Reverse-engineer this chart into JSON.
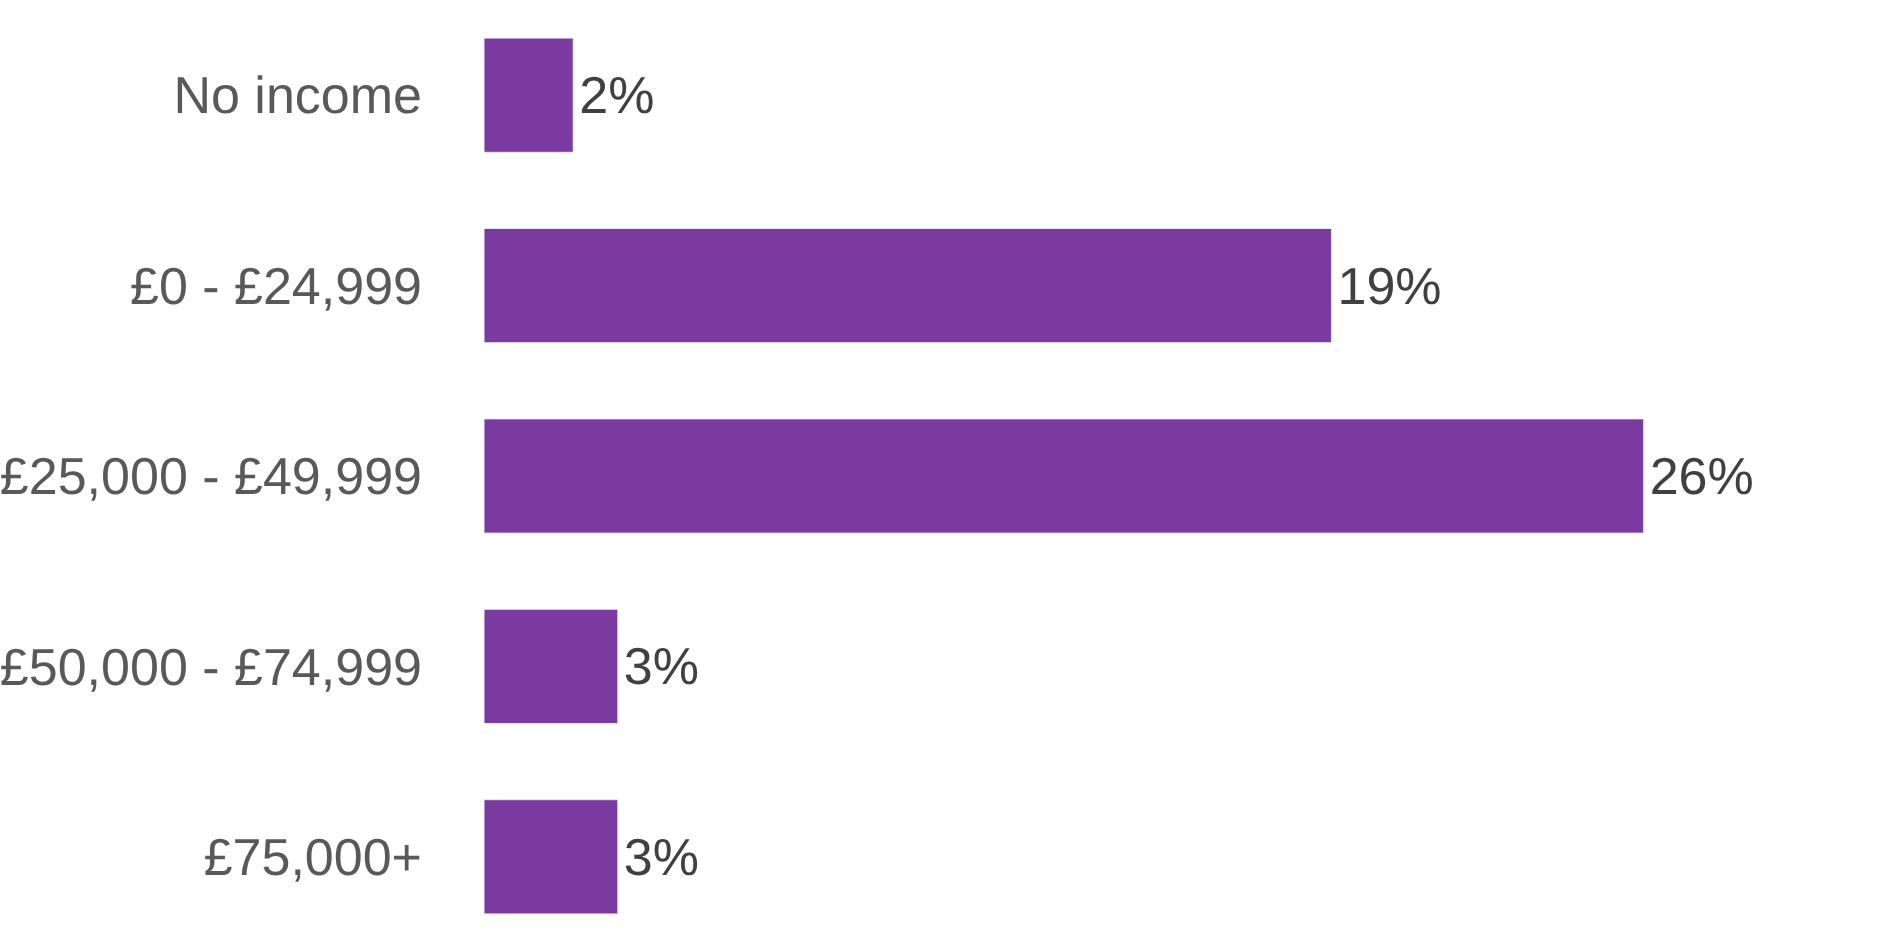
{
  "chart_data": {
    "type": "bar",
    "orientation": "horizontal",
    "categories": [
      "No income",
      "£0 - £24,999",
      "£25,000 - £49,999",
      "£50,000 - £74,999",
      "£75,000+"
    ],
    "values": [
      2,
      19,
      26,
      3,
      3
    ],
    "value_labels": [
      "2%",
      "19%",
      "26%",
      "3%",
      "3%"
    ],
    "color": "#7a3aa0"
  }
}
